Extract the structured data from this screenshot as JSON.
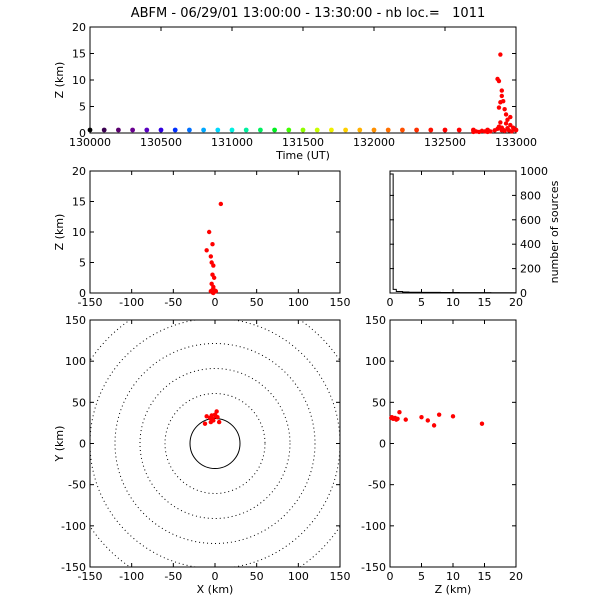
{
  "title": "ABFM - 06/29/01 13:00:00 - 13:30:00 - nb loc.=   1011",
  "chart_data": [
    {
      "id": "time-height",
      "type": "scatter",
      "xlabel": "Time (UT)",
      "ylabel": "Z (km)",
      "xlim": [
        130000,
        133000
      ],
      "ylim": [
        0,
        20
      ],
      "xticks": [
        130000,
        130500,
        131000,
        131500,
        132000,
        132500,
        133000
      ],
      "yticks": [
        0,
        5,
        10,
        15,
        20
      ],
      "time_color_markers": [
        {
          "x": 130000,
          "color": "#000000"
        },
        {
          "x": 130100,
          "color": "#3a0050"
        },
        {
          "x": 130200,
          "color": "#5a006e"
        },
        {
          "x": 130300,
          "color": "#6a0090"
        },
        {
          "x": 130400,
          "color": "#5a00c0"
        },
        {
          "x": 130500,
          "color": "#3000e0"
        },
        {
          "x": 130600,
          "color": "#0030ff"
        },
        {
          "x": 130700,
          "color": "#0070ff"
        },
        {
          "x": 130800,
          "color": "#00a8ff"
        },
        {
          "x": 130900,
          "color": "#00d8ff"
        },
        {
          "x": 131000,
          "color": "#00f0e0"
        },
        {
          "x": 131100,
          "color": "#00f0a0"
        },
        {
          "x": 131200,
          "color": "#00f060"
        },
        {
          "x": 131300,
          "color": "#00f020"
        },
        {
          "x": 131400,
          "color": "#40ff00"
        },
        {
          "x": 131500,
          "color": "#90ff00"
        },
        {
          "x": 131600,
          "color": "#c8ff00"
        },
        {
          "x": 131700,
          "color": "#f0f000"
        },
        {
          "x": 131800,
          "color": "#ffd000"
        },
        {
          "x": 131900,
          "color": "#ffb000"
        },
        {
          "x": 132000,
          "color": "#ff9000"
        },
        {
          "x": 132100,
          "color": "#ff7000"
        },
        {
          "x": 132200,
          "color": "#ff5000"
        },
        {
          "x": 132300,
          "color": "#ff3000"
        },
        {
          "x": 132400,
          "color": "#ff1000"
        },
        {
          "x": 132500,
          "color": "#ff0000"
        },
        {
          "x": 132600,
          "color": "#ff0000"
        },
        {
          "x": 132700,
          "color": "#ff0000"
        },
        {
          "x": 132800,
          "color": "#ff0000"
        },
        {
          "x": 132900,
          "color": "#ff0000"
        },
        {
          "x": 133000,
          "color": "#ff0000"
        }
      ],
      "points": [
        {
          "x": 132700,
          "y": 0.2
        },
        {
          "x": 132720,
          "y": 0.3
        },
        {
          "x": 132740,
          "y": 0.2
        },
        {
          "x": 132760,
          "y": 0.4
        },
        {
          "x": 132780,
          "y": 0.3
        },
        {
          "x": 132800,
          "y": 0.2
        },
        {
          "x": 132820,
          "y": 0.3
        },
        {
          "x": 132850,
          "y": 0.5
        },
        {
          "x": 132870,
          "y": 0.8
        },
        {
          "x": 132880,
          "y": 1.2
        },
        {
          "x": 132890,
          "y": 2.0
        },
        {
          "x": 132900,
          "y": 1.0
        },
        {
          "x": 132910,
          "y": 0.6
        },
        {
          "x": 132920,
          "y": 0.4
        },
        {
          "x": 132930,
          "y": 1.8
        },
        {
          "x": 132940,
          "y": 0.9
        },
        {
          "x": 132950,
          "y": 0.5
        },
        {
          "x": 132960,
          "y": 1.5
        },
        {
          "x": 132970,
          "y": 0.3
        },
        {
          "x": 132980,
          "y": 1.0
        },
        {
          "x": 132990,
          "y": 0.7
        },
        {
          "x": 132880,
          "y": 4.8
        },
        {
          "x": 132890,
          "y": 5.8
        },
        {
          "x": 132900,
          "y": 7.0
        },
        {
          "x": 132910,
          "y": 6.0
        },
        {
          "x": 132920,
          "y": 4.5
        },
        {
          "x": 132930,
          "y": 3.5
        },
        {
          "x": 132880,
          "y": 9.8
        },
        {
          "x": 132870,
          "y": 10.2
        },
        {
          "x": 132890,
          "y": 14.8
        },
        {
          "x": 132900,
          "y": 8.0
        },
        {
          "x": 132940,
          "y": 2.5
        },
        {
          "x": 132960,
          "y": 3.0
        }
      ],
      "marker_color": "#ff0000"
    },
    {
      "id": "xz-projection",
      "type": "scatter",
      "xlabel": "",
      "ylabel": "Z (km)",
      "xlim": [
        -150,
        150
      ],
      "ylim": [
        0,
        20
      ],
      "xticks": [
        -150,
        -100,
        -50,
        0,
        50,
        100,
        150
      ],
      "yticks": [
        0,
        5,
        10,
        15,
        20
      ],
      "points": [
        {
          "x": 7,
          "y": 14.6
        },
        {
          "x": -7,
          "y": 10.0
        },
        {
          "x": -3,
          "y": 8.0
        },
        {
          "x": -10,
          "y": 7.0
        },
        {
          "x": -5,
          "y": 6.0
        },
        {
          "x": -4,
          "y": 5.0
        },
        {
          "x": -2,
          "y": 4.5
        },
        {
          "x": -3,
          "y": 3.0
        },
        {
          "x": -1,
          "y": 2.5
        },
        {
          "x": -4,
          "y": 1.5
        },
        {
          "x": -2,
          "y": 1.0
        },
        {
          "x": -3,
          "y": 0.5
        },
        {
          "x": 0,
          "y": 0.4
        },
        {
          "x": -5,
          "y": 0.3
        },
        {
          "x": -1,
          "y": 0.2
        },
        {
          "x": -3,
          "y": 0.1
        },
        {
          "x": 1,
          "y": 0.3
        },
        {
          "x": -2,
          "y": 0.0
        }
      ],
      "marker_color": "#ff0000"
    },
    {
      "id": "height-histogram",
      "type": "line",
      "xlabel": "",
      "ylabel": "number of sources",
      "xlim": [
        0,
        20
      ],
      "ylim": [
        0,
        1000
      ],
      "xticks": [
        0,
        5,
        10,
        15,
        20
      ],
      "yticks": [
        0,
        200,
        400,
        600,
        800,
        1000
      ],
      "x": [
        0,
        0.5,
        1,
        2,
        3,
        4,
        5,
        6,
        7,
        8,
        9,
        10,
        11,
        12,
        13,
        14,
        15,
        16,
        17,
        18,
        19,
        20
      ],
      "values": [
        975,
        30,
        12,
        8,
        6,
        6,
        5,
        5,
        5,
        4,
        4,
        4,
        3,
        3,
        3,
        3,
        3,
        2,
        2,
        2,
        2,
        2
      ]
    },
    {
      "id": "plan-view",
      "type": "scatter",
      "xlabel": "X (km)",
      "ylabel": "Y (km)",
      "xlim": [
        -150,
        150
      ],
      "ylim": [
        -150,
        150
      ],
      "xticks": [
        -150,
        -100,
        -50,
        0,
        50,
        100,
        150
      ],
      "yticks": [
        -150,
        -100,
        -50,
        0,
        50,
        100,
        150
      ],
      "range_rings_km": [
        30,
        60,
        90,
        120,
        150,
        180
      ],
      "points": [
        {
          "x": -10,
          "y": 33
        },
        {
          "x": -6,
          "y": 31
        },
        {
          "x": -4,
          "y": 34
        },
        {
          "x": 0,
          "y": 35
        },
        {
          "x": 2,
          "y": 39
        },
        {
          "x": 3,
          "y": 32
        },
        {
          "x": -2,
          "y": 28
        },
        {
          "x": -5,
          "y": 26
        },
        {
          "x": -12,
          "y": 24
        },
        {
          "x": 5,
          "y": 26
        },
        {
          "x": -3,
          "y": 30
        },
        {
          "x": 1,
          "y": 33
        }
      ],
      "marker_color": "#ff0000"
    },
    {
      "id": "zy-projection",
      "type": "scatter",
      "xlabel": "Z (km)",
      "ylabel": "",
      "xlim": [
        0,
        20
      ],
      "ylim": [
        -150,
        150
      ],
      "xticks": [
        0,
        5,
        10,
        15,
        20
      ],
      "yticks": [
        -150,
        -100,
        -50,
        0,
        50,
        100,
        150
      ],
      "points": [
        {
          "x": 0.2,
          "y": 31
        },
        {
          "x": 0.5,
          "y": 30
        },
        {
          "x": 0.8,
          "y": 31
        },
        {
          "x": 1.0,
          "y": 29
        },
        {
          "x": 1.5,
          "y": 38
        },
        {
          "x": 2.5,
          "y": 29
        },
        {
          "x": 5.0,
          "y": 32
        },
        {
          "x": 6.0,
          "y": 28
        },
        {
          "x": 7.0,
          "y": 22
        },
        {
          "x": 7.8,
          "y": 35
        },
        {
          "x": 10.0,
          "y": 33
        },
        {
          "x": 14.6,
          "y": 24
        },
        {
          "x": 0.3,
          "y": 32
        },
        {
          "x": 1.2,
          "y": 30
        }
      ],
      "marker_color": "#ff0000"
    }
  ]
}
